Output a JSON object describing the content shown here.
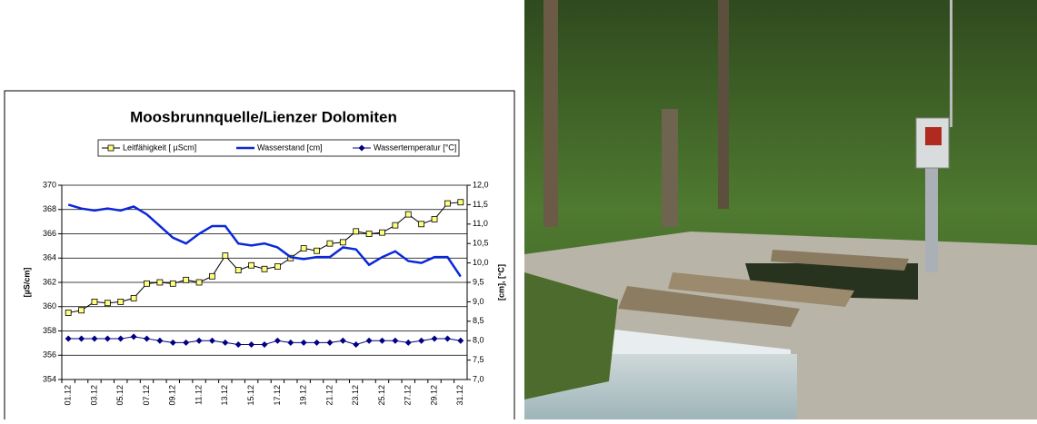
{
  "chart_data": {
    "type": "line",
    "title": "Moosbrunnquelle/Lienzer Dolomiten",
    "categories": [
      "01.12",
      null,
      "03.12",
      null,
      "05.12",
      null,
      "07.12",
      null,
      "09.12",
      null,
      "11.12",
      null,
      "13.12",
      null,
      "15.12",
      null,
      "17.12",
      null,
      "19.12",
      null,
      "21.12",
      null,
      "23.12",
      null,
      "25.12",
      null,
      "27.12",
      null,
      "29.12",
      null,
      "31.12"
    ],
    "series": [
      {
        "name": "Leitfähigkeit [ µScm]",
        "color": "#d4c800",
        "marker": "square",
        "values": [
          359.5,
          359.7,
          360.4,
          360.3,
          360.4,
          360.7,
          361.9,
          362.0,
          361.9,
          362.2,
          362.0,
          362.5,
          364.2,
          363.0,
          363.4,
          363.1,
          363.3,
          364.0,
          364.8,
          364.6,
          365.2,
          365.3,
          366.2,
          366.0,
          366.1,
          366.7,
          367.6,
          366.8,
          367.2,
          368.5,
          368.6
        ]
      },
      {
        "name": "Wasserstand [cm]",
        "color": "#0a28d8",
        "axis": "y2",
        "marker": "none",
        "values": [
          11.5,
          11.4,
          11.35,
          11.4,
          11.35,
          11.45,
          11.25,
          10.95,
          10.65,
          10.5,
          10.75,
          10.95,
          10.95,
          10.5,
          10.45,
          10.5,
          10.4,
          10.15,
          10.1,
          10.15,
          10.15,
          10.4,
          10.35,
          9.95,
          10.15,
          10.3,
          10.05,
          10.0,
          10.15,
          10.15,
          9.65
        ]
      },
      {
        "name": "Wassertemperatur [°C]",
        "color": "#000080",
        "axis": "y2",
        "marker": "diamond",
        "values": [
          8.05,
          8.05,
          8.05,
          8.05,
          8.05,
          8.1,
          8.05,
          8.0,
          7.95,
          7.95,
          8.0,
          8.0,
          7.95,
          7.9,
          7.9,
          7.9,
          8.0,
          7.95,
          7.95,
          7.95,
          7.95,
          8.0,
          7.9,
          8.0,
          8.0,
          8.0,
          7.95,
          8.0,
          8.05,
          8.05,
          8.0
        ]
      }
    ],
    "ylabel": "[µS/cm]",
    "y2label": "[cm], [°C]",
    "ylim": [
      354,
      370
    ],
    "yticks": [
      354,
      356,
      358,
      360,
      362,
      364,
      366,
      368,
      370
    ],
    "y2lim": [
      7.0,
      12.0
    ],
    "y2ticks": [
      {
        "value": 7.0,
        "label": "7,0"
      },
      {
        "value": 7.5,
        "label": "7,5"
      },
      {
        "value": 8.0,
        "label": "8,0"
      },
      {
        "value": 8.5,
        "label": "8,5"
      },
      {
        "value": 9.0,
        "label": "9,0"
      },
      {
        "value": 9.5,
        "label": "9,5"
      },
      {
        "value": 10.0,
        "label": "10,0"
      },
      {
        "value": 10.5,
        "label": "10,5"
      },
      {
        "value": 11.0,
        "label": "11,0"
      },
      {
        "value": 11.5,
        "label": "11,5"
      },
      {
        "value": 12.0,
        "label": "12,0"
      }
    ],
    "grid": true,
    "legend": "top"
  }
}
